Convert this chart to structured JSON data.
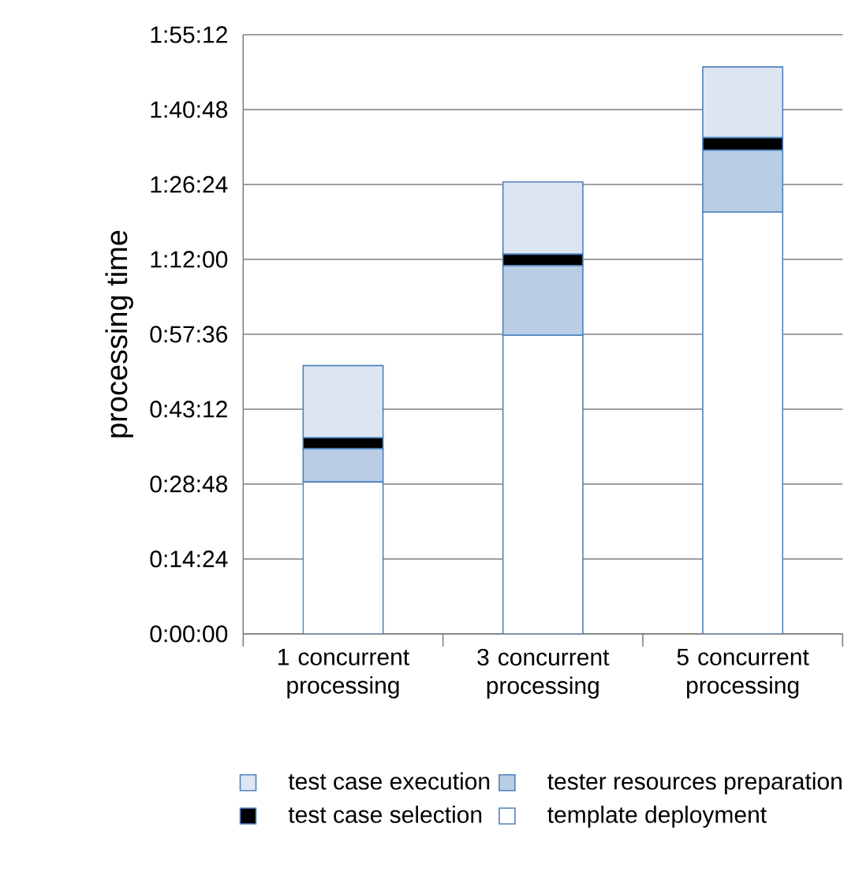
{
  "chart_data": {
    "type": "bar",
    "stacked": true,
    "ylabel": "processing time",
    "categories": [
      "1 concurrent processing",
      "3 concurrent processing",
      "5 concurrent processing"
    ],
    "series": [
      {
        "name": "template deployment",
        "color": "#ffffff",
        "values": [
          29.2,
          57.4,
          81.1
        ]
      },
      {
        "name": "tester resources preparation",
        "color": "#b9cde5",
        "values": [
          6.4,
          13.4,
          11.9
        ]
      },
      {
        "name": "test case selection",
        "color": "#000000",
        "values": [
          2.1,
          2.2,
          2.4
        ]
      },
      {
        "name": "test case execution",
        "color": "#dce6f2",
        "values": [
          13.9,
          13.9,
          13.6
        ]
      }
    ],
    "ylim": [
      0,
      115.2
    ],
    "yticks": [
      {
        "value": 0,
        "label": "0:00:00"
      },
      {
        "value": 14.4,
        "label": "0:14:24"
      },
      {
        "value": 28.8,
        "label": "0:28:48"
      },
      {
        "value": 43.2,
        "label": "0:43:12"
      },
      {
        "value": 57.6,
        "label": "0:57:36"
      },
      {
        "value": 72,
        "label": "1:12:00"
      },
      {
        "value": 86.4,
        "label": "1:26:24"
      },
      {
        "value": 100.8,
        "label": "1:40:48"
      },
      {
        "value": 115.2,
        "label": "1:55:12"
      }
    ],
    "grid": "y",
    "legend": "bottom"
  }
}
